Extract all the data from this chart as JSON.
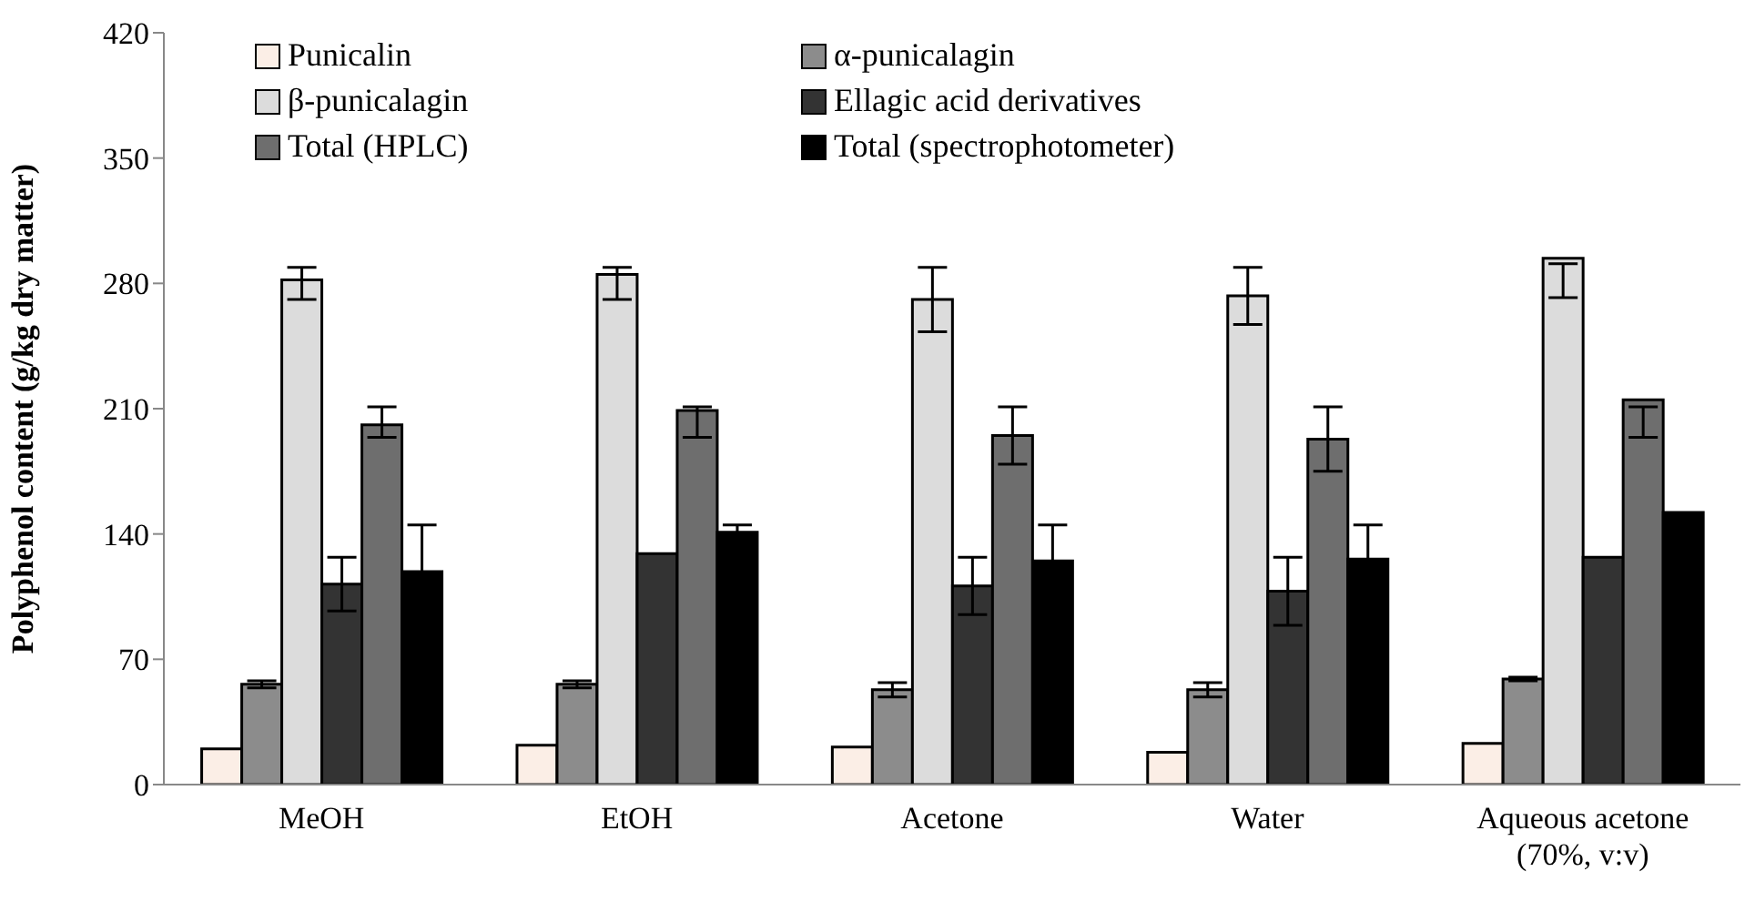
{
  "chart_data": {
    "type": "bar",
    "ylabel": "Polyphenol content (g/kg dry matter)",
    "categories": [
      "MeOH",
      "EtOH",
      "Acetone",
      "Water",
      "Aqueous acetone (70%, v:v)"
    ],
    "ylim": [
      0,
      420
    ],
    "yticks": [
      0,
      70,
      140,
      210,
      280,
      350,
      420
    ],
    "grid": false,
    "legend": "top",
    "series": [
      {
        "name": "Punicalin",
        "color": "#fbeee6",
        "values": [
          20,
          22,
          21,
          18,
          23
        ]
      },
      {
        "name": "α-punicalagin",
        "color": "#8c8c8c",
        "values": [
          56,
          56,
          53,
          53,
          59
        ],
        "errors": [
          2,
          2,
          4,
          4,
          1
        ]
      },
      {
        "name": "β-punicalagin",
        "color": "#dcdcdc",
        "values": [
          282,
          285,
          271,
          273,
          294
        ],
        "errors": [
          [
            271,
            289
          ],
          [
            271,
            289
          ],
          18,
          16,
          [
            272,
            291
          ]
        ]
      },
      {
        "name": "Ellagic acid derivatives",
        "color": "#333333",
        "values": [
          112,
          129,
          111,
          108,
          127
        ],
        "errors": [
          15,
          null,
          16,
          19,
          null
        ]
      },
      {
        "name": "Total (HPLC)",
        "color": "#6e6e6e",
        "values": [
          201,
          209,
          195,
          193,
          215
        ],
        "errors": [
          [
            194,
            211
          ],
          [
            194,
            211
          ],
          16,
          18,
          [
            194,
            211
          ]
        ]
      },
      {
        "name": "Total (spectrophotometer)",
        "color": "#000000",
        "values": [
          119,
          141,
          125,
          126,
          152
        ],
        "errors": [
          26,
          4,
          20,
          19,
          null
        ]
      }
    ]
  }
}
